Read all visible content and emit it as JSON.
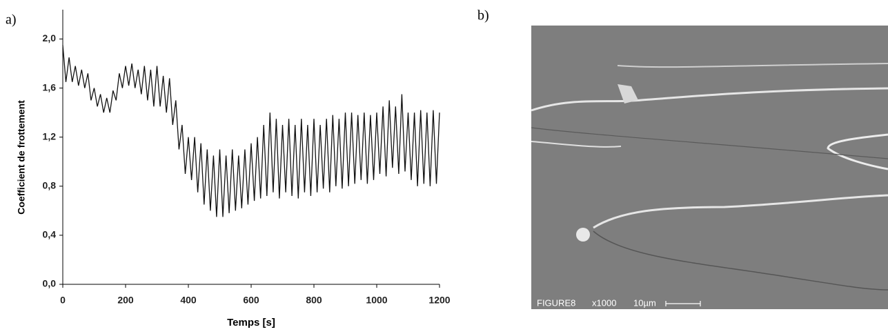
{
  "panel_labels": [
    "a)",
    "b)"
  ],
  "micrograph": {
    "label": "FIGURE8",
    "magnification": "x1000",
    "scale": "10µm"
  },
  "chart_data": {
    "type": "line",
    "x_label": "Temps [s]",
    "y_label": "Coefficient de frottement",
    "color": "#111111",
    "x": [
      0,
      10,
      20,
      30,
      40,
      50,
      60,
      70,
      80,
      90,
      100,
      110,
      120,
      130,
      140,
      150,
      160,
      170,
      180,
      190,
      200,
      210,
      220,
      230,
      240,
      250,
      260,
      270,
      280,
      290,
      300,
      310,
      320,
      330,
      340,
      350,
      360,
      370,
      380,
      390,
      400,
      410,
      420,
      430,
      440,
      450,
      460,
      470,
      480,
      490,
      500,
      510,
      520,
      530,
      540,
      550,
      560,
      570,
      580,
      590,
      600,
      610,
      620,
      630,
      640,
      650,
      660,
      670,
      680,
      690,
      700,
      710,
      720,
      730,
      740,
      750,
      760,
      770,
      780,
      790,
      800,
      810,
      820,
      830,
      840,
      850,
      860,
      870,
      880,
      890,
      900,
      910,
      920,
      930,
      940,
      950,
      960,
      970,
      980,
      990,
      1000,
      1010,
      1020,
      1030,
      1040,
      1050,
      1060,
      1070,
      1080,
      1090,
      1100,
      1110,
      1120,
      1130,
      1140,
      1150,
      1160,
      1170,
      1180,
      1190,
      1200
    ],
    "values": [
      1.95,
      1.65,
      1.85,
      1.65,
      1.78,
      1.62,
      1.75,
      1.6,
      1.72,
      1.5,
      1.6,
      1.45,
      1.55,
      1.4,
      1.52,
      1.4,
      1.58,
      1.5,
      1.72,
      1.6,
      1.78,
      1.62,
      1.8,
      1.6,
      1.75,
      1.55,
      1.78,
      1.5,
      1.75,
      1.45,
      1.78,
      1.45,
      1.7,
      1.4,
      1.68,
      1.3,
      1.5,
      1.1,
      1.3,
      0.9,
      1.2,
      0.85,
      1.2,
      0.75,
      1.15,
      0.65,
      1.1,
      0.6,
      1.05,
      0.55,
      1.1,
      0.55,
      1.05,
      0.58,
      1.1,
      0.6,
      1.05,
      0.62,
      1.1,
      0.65,
      1.15,
      0.68,
      1.2,
      0.7,
      1.3,
      0.72,
      1.4,
      0.75,
      1.35,
      0.7,
      1.3,
      0.75,
      1.35,
      0.72,
      1.3,
      0.7,
      1.35,
      0.75,
      1.3,
      0.72,
      1.35,
      0.75,
      1.3,
      0.78,
      1.35,
      0.75,
      1.38,
      0.8,
      1.35,
      0.78,
      1.4,
      0.8,
      1.4,
      0.82,
      1.38,
      0.85,
      1.4,
      0.82,
      1.38,
      0.85,
      1.4,
      0.9,
      1.45,
      0.88,
      1.5,
      0.95,
      1.45,
      0.9,
      1.55,
      0.92,
      1.4,
      0.85,
      1.4,
      0.8,
      1.42,
      0.82,
      1.4,
      0.8,
      1.42,
      0.82,
      1.4
    ],
    "xlim": [
      0,
      1200
    ],
    "ylim": [
      0,
      2.2
    ],
    "xticks": [
      0,
      200,
      400,
      600,
      800,
      1000,
      1200
    ],
    "yticks": [
      {
        "value": 0,
        "label": "0,0"
      },
      {
        "value": 0.4,
        "label": "0,4"
      },
      {
        "value": 0.8,
        "label": "0,8"
      },
      {
        "value": 1.2,
        "label": "1,2"
      },
      {
        "value": 1.6,
        "label": "1,6"
      },
      {
        "value": 2.0,
        "label": "2,0"
      }
    ],
    "grid": false
  }
}
